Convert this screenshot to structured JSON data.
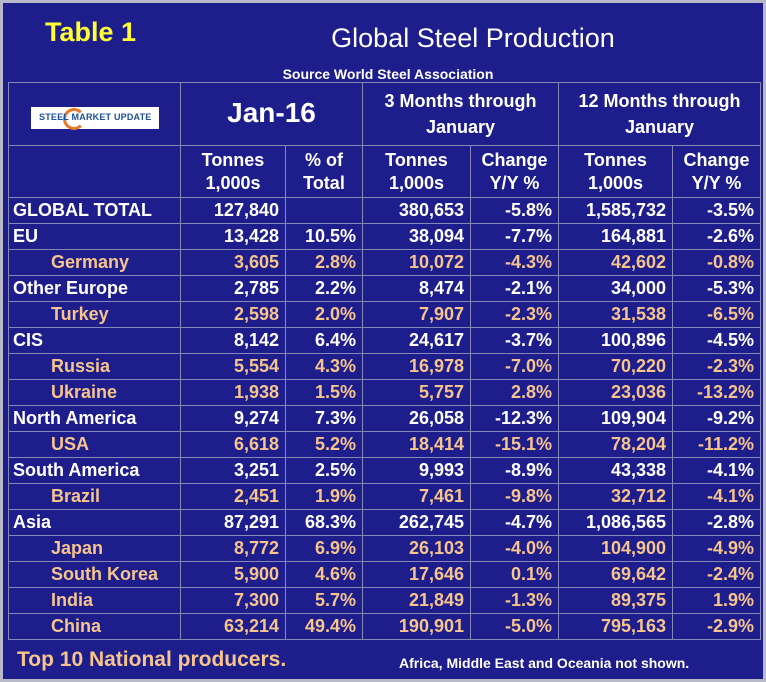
{
  "header": {
    "label": "Table 1",
    "title": "Global Steel Production",
    "source": "Source World Steel Association"
  },
  "logo": {
    "text": "STEEL MARKET UPDATE"
  },
  "table": {
    "groups": [
      "Jan-16",
      "3 Months through January",
      "12 Months through January"
    ],
    "subheaders": [
      [
        "Tonnes",
        "1,000s"
      ],
      [
        "% of",
        "Total"
      ],
      [
        "Tonnes",
        "1,000s"
      ],
      [
        "Change",
        "Y/Y %"
      ],
      [
        "Tonnes",
        "1,000s"
      ],
      [
        "Change",
        "Y/Y %"
      ]
    ],
    "rows": [
      [
        "GLOBAL TOTAL",
        "127,840",
        null,
        "380,653",
        "-5.8%",
        "1,585,732",
        "-3.5%"
      ],
      [
        "EU",
        "13,428",
        "10.5%",
        "38,094",
        "-7.7%",
        "164,881",
        "-2.6%"
      ],
      [
        "Germany",
        "3,605",
        "2.8%",
        "10,072",
        "-4.3%",
        "42,602",
        "-0.8%"
      ],
      [
        "Other Europe",
        "2,785",
        "2.2%",
        "8,474",
        "-2.1%",
        "34,000",
        "-5.3%"
      ],
      [
        "Turkey",
        "2,598",
        "2.0%",
        "7,907",
        "-2.3%",
        "31,538",
        "-6.5%"
      ],
      [
        "CIS",
        "8,142",
        "6.4%",
        "24,617",
        "-3.7%",
        "100,896",
        "-4.5%"
      ],
      [
        "Russia",
        "5,554",
        "4.3%",
        "16,978",
        "-7.0%",
        "70,220",
        "-2.3%"
      ],
      [
        "Ukraine",
        "1,938",
        "1.5%",
        "5,757",
        "2.8%",
        "23,036",
        "-13.2%"
      ],
      [
        "North America",
        "9,274",
        "7.3%",
        "26,058",
        "-12.3%",
        "109,904",
        "-9.2%"
      ],
      [
        "USA",
        "6,618",
        "5.2%",
        "18,414",
        "-15.1%",
        "78,204",
        "-11.2%"
      ],
      [
        "South America",
        "3,251",
        "2.5%",
        "9,993",
        "-8.9%",
        "43,338",
        "-4.1%"
      ],
      [
        "Brazil",
        "2,451",
        "1.9%",
        "7,461",
        "-9.8%",
        "32,712",
        "-4.1%"
      ],
      [
        "Asia",
        "87,291",
        "68.3%",
        "262,745",
        "-4.7%",
        "1,086,565",
        "-2.8%"
      ],
      [
        "Japan",
        "8,772",
        "6.9%",
        "26,103",
        "-4.0%",
        "104,900",
        "-4.9%"
      ],
      [
        "South Korea",
        "5,900",
        "4.6%",
        "17,646",
        "0.1%",
        "69,642",
        "-2.4%"
      ],
      [
        "India",
        "7,300",
        "5.7%",
        "21,849",
        "-1.3%",
        "89,375",
        "1.9%"
      ],
      [
        "China",
        "63,214",
        "49.4%",
        "190,901",
        "-5.0%",
        "795,163",
        "-2.9%"
      ]
    ]
  },
  "footer": {
    "note": "Top 10 National producers.",
    "aside": "Africa, Middle East and Oceania not shown."
  }
}
